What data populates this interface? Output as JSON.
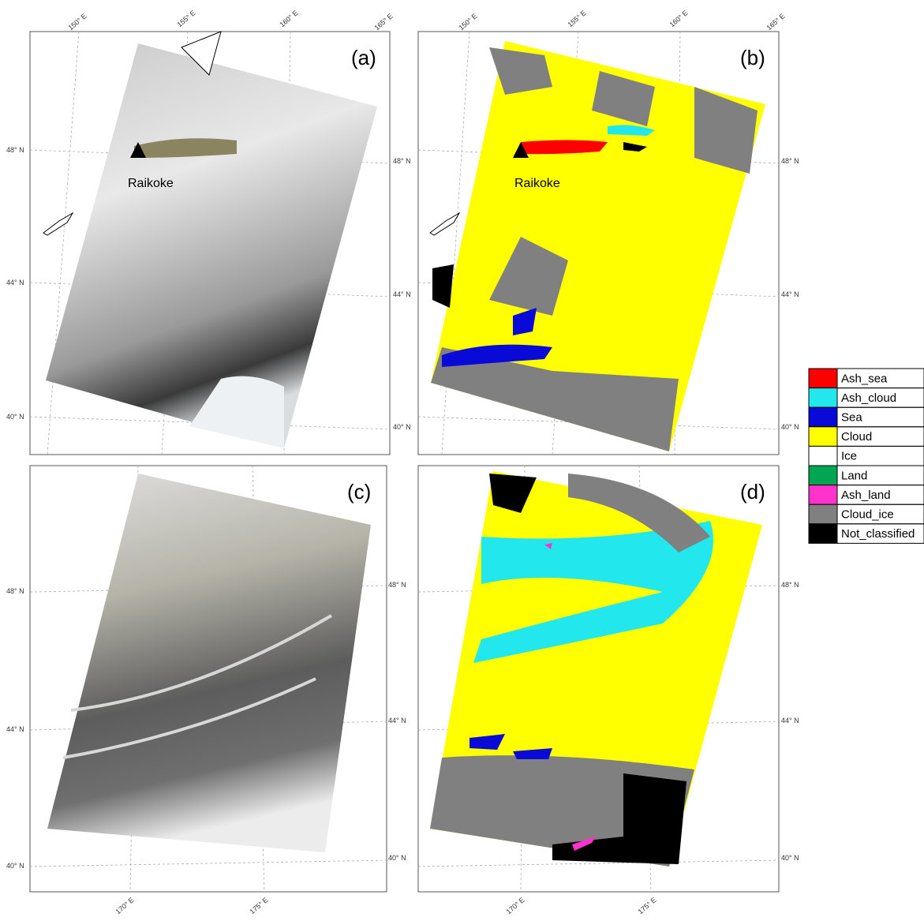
{
  "panels": [
    {
      "label": "(a)",
      "lon_labels": [
        "150° E",
        "155° E",
        "160° E",
        "165° E"
      ],
      "lat_labels_left": [
        "48° N",
        "44° N",
        "40° N"
      ],
      "lat_labels_right": [
        "48° N",
        "44° N",
        "40° N"
      ],
      "annotation": "Raikoke"
    },
    {
      "label": "(b)",
      "lon_labels": [
        "150° E",
        "155° E",
        "160° E",
        "165° E"
      ],
      "lat_labels_right": [
        "48° N",
        "44° N",
        "40° N"
      ],
      "annotation": "Raikoke"
    },
    {
      "label": "(c)",
      "lon_labels": [
        "170° E",
        "175° E"
      ],
      "lat_labels_left": [
        "48° N",
        "44° N",
        "40° N"
      ],
      "lat_labels_right": [
        "48° N",
        "44° N",
        "40° N"
      ]
    },
    {
      "label": "(d)",
      "lon_labels": [
        "170° E",
        "175° E"
      ],
      "lat_labels_right": [
        "48° N",
        "44° N",
        "40° N"
      ]
    }
  ],
  "legend": {
    "items": [
      {
        "name": "Ash_sea",
        "color": "#ff0000"
      },
      {
        "name": "Ash_cloud",
        "color": "#22e8ee"
      },
      {
        "name": "Sea",
        "color": "#0a0ad8"
      },
      {
        "name": "Cloud",
        "color": "#ffff00"
      },
      {
        "name": "Ice",
        "color": "#ffffff"
      },
      {
        "name": "Land",
        "color": "#00a651"
      },
      {
        "name": "Ash_land",
        "color": "#ff33cc"
      },
      {
        "name": "Cloud_ice",
        "color": "#808080"
      },
      {
        "name": "Not_classified",
        "color": "#000000"
      }
    ]
  }
}
